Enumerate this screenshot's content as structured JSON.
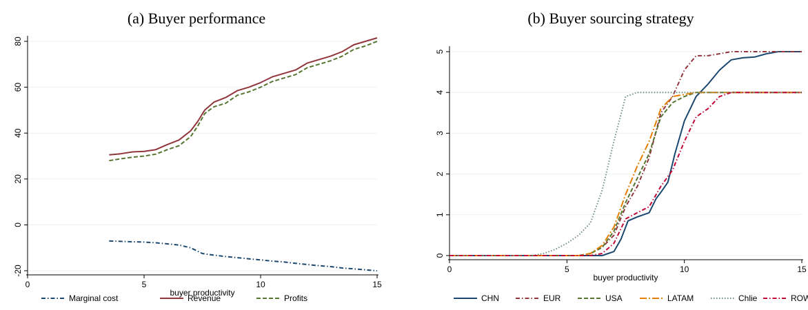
{
  "chart_data": [
    {
      "type": "line",
      "title": "(a) Buyer performance",
      "xlabel": "buyer productivity",
      "ylabel": "",
      "xlim": [
        0,
        15
      ],
      "ylim": [
        -20,
        80
      ],
      "xticks": [
        0,
        5,
        10,
        15
      ],
      "yticks": [
        -20,
        0,
        20,
        40,
        60,
        80
      ],
      "grid": "horizontal",
      "legend": "bottom",
      "series": [
        {
          "name": "Marginal cost",
          "color": "#1a476f",
          "dash": "dash-dot",
          "x": [
            3.5,
            4,
            4.5,
            5,
            5.5,
            6,
            6.5,
            7,
            7.5,
            8,
            8.5,
            9,
            9.5,
            10,
            10.5,
            11,
            11.5,
            12,
            12.5,
            13,
            13.5,
            14,
            14.5,
            15
          ],
          "y": [
            -7,
            -7.2,
            -7.4,
            -7.5,
            -7.8,
            -8.3,
            -8.8,
            -10,
            -12.5,
            -13.2,
            -13.8,
            -14.3,
            -14.8,
            -15.3,
            -15.8,
            -16.2,
            -16.8,
            -17.3,
            -17.8,
            -18.2,
            -18.8,
            -19.2,
            -19.6,
            -20
          ]
        },
        {
          "name": "Revenue",
          "color": "#90353b",
          "dash": "solid",
          "x": [
            3.5,
            4,
            4.5,
            5,
            5.5,
            6,
            6.5,
            7,
            7.3,
            7.6,
            8,
            8.5,
            9,
            9.5,
            10,
            10.5,
            11,
            11.5,
            12,
            12.5,
            13,
            13.5,
            14,
            14.5,
            15
          ],
          "y": [
            30.5,
            31,
            31.8,
            32,
            32.8,
            35,
            37,
            41,
            45,
            50,
            53.5,
            55.5,
            58.5,
            60,
            62,
            64.5,
            66,
            67.5,
            70.5,
            72,
            73.5,
            75.5,
            78.5,
            80,
            81.5
          ]
        },
        {
          "name": "Profits",
          "color": "#55752f",
          "dash": "dash",
          "x": [
            3.5,
            4,
            4.5,
            5,
            5.5,
            6,
            6.5,
            7,
            7.3,
            7.6,
            8,
            8.5,
            9,
            9.5,
            10,
            10.5,
            11,
            11.5,
            12,
            12.5,
            13,
            13.5,
            14,
            14.5,
            15
          ],
          "y": [
            28,
            28.8,
            29.5,
            30,
            30.8,
            32.8,
            34.5,
            38.5,
            43,
            48.5,
            51.5,
            53,
            56.5,
            58,
            60,
            62.5,
            64,
            65.5,
            68.5,
            70,
            71.5,
            73.5,
            76.5,
            78,
            80
          ]
        }
      ]
    },
    {
      "type": "line",
      "title": "(b) Buyer sourcing strategy",
      "xlabel": "buyer productivity",
      "ylabel": "",
      "xlim": [
        0,
        15
      ],
      "ylim": [
        0,
        5
      ],
      "xticks": [
        0,
        5,
        10,
        15
      ],
      "yticks": [
        0,
        1,
        2,
        3,
        4,
        5
      ],
      "grid": "horizontal",
      "legend": "bottom",
      "series": [
        {
          "name": "CHN",
          "color": "#1a476f",
          "dash": "solid",
          "x": [
            0,
            6,
            6.5,
            7,
            7.3,
            7.6,
            8,
            8.5,
            8.8,
            9,
            9.3,
            9.6,
            10,
            10.5,
            11,
            11.5,
            12,
            12.5,
            13,
            13.5,
            14,
            14.5,
            15
          ],
          "y": [
            0,
            0,
            0,
            0.1,
            0.4,
            0.85,
            0.95,
            1.05,
            1.4,
            1.55,
            1.8,
            2.5,
            3.3,
            3.9,
            4.2,
            4.55,
            4.8,
            4.85,
            4.87,
            4.95,
            5,
            5,
            5
          ]
        },
        {
          "name": "EUR",
          "color": "#90353b",
          "dash": "dash-dot",
          "x": [
            0,
            5.5,
            6,
            6.5,
            7,
            7.5,
            8,
            8.5,
            9,
            9.5,
            10,
            10.5,
            11,
            11.5,
            12,
            12.5,
            13,
            15
          ],
          "y": [
            0,
            0,
            0.05,
            0.2,
            0.5,
            1.2,
            1.7,
            2.4,
            3.5,
            3.9,
            4.55,
            4.9,
            4.9,
            4.95,
            5,
            5,
            5,
            5
          ]
        },
        {
          "name": "USA",
          "color": "#55752f",
          "dash": "dash",
          "x": [
            0,
            5.5,
            6,
            6.5,
            7,
            7.5,
            8,
            8.5,
            9,
            9.5,
            10,
            10.5,
            11,
            12,
            13,
            15
          ],
          "y": [
            0,
            0,
            0.05,
            0.2,
            0.6,
            1.3,
            1.9,
            2.5,
            3.4,
            3.75,
            3.9,
            4,
            4,
            4,
            4,
            4
          ]
        },
        {
          "name": "LATAM",
          "color": "#e37e00",
          "dash": "long-dash-dot",
          "x": [
            0,
            5.5,
            6,
            6.5,
            7,
            7.5,
            8,
            8.5,
            9,
            9.5,
            10,
            10.5,
            11,
            12,
            13,
            15
          ],
          "y": [
            0,
            0,
            0.05,
            0.25,
            0.7,
            1.5,
            2.2,
            2.8,
            3.6,
            3.9,
            3.95,
            4,
            4,
            4,
            4,
            4
          ]
        },
        {
          "name": "Chlie",
          "color": "#6e8e84",
          "dash": "dot",
          "x": [
            0,
            3.5,
            4,
            4.5,
            5,
            5.5,
            6,
            6.5,
            7,
            7.5,
            8,
            8.5,
            9,
            10,
            11,
            12,
            13,
            15
          ],
          "y": [
            0,
            0,
            0.05,
            0.15,
            0.3,
            0.5,
            0.8,
            1.6,
            2.8,
            3.9,
            4,
            4,
            4,
            4,
            4,
            4,
            4,
            4
          ]
        },
        {
          "name": "ROW",
          "color": "#c10534",
          "dash": "dash-dot",
          "x": [
            0,
            6,
            6.5,
            7,
            7.5,
            8,
            8.5,
            9,
            9.5,
            10,
            10.5,
            11,
            11.5,
            12,
            12.5,
            13,
            15
          ],
          "y": [
            0,
            0,
            0.05,
            0.3,
            0.9,
            1.05,
            1.2,
            1.7,
            2.1,
            2.8,
            3.4,
            3.6,
            3.9,
            4,
            4,
            4,
            4
          ]
        }
      ]
    }
  ]
}
